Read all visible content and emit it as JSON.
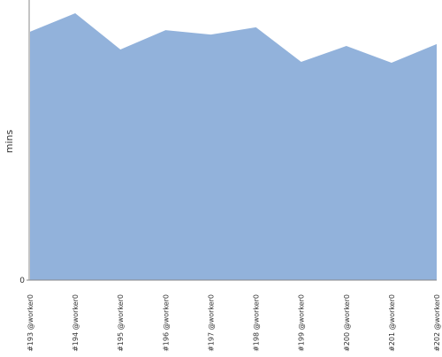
{
  "chart_data": {
    "type": "area",
    "y_label": "mins",
    "categories": [
      "#193 @worker0",
      "#194 @worker0",
      "#195 @worker0",
      "#196 @worker0",
      "#197 @worker0",
      "#198 @worker0",
      "#199 @worker0",
      "#200 @worker0",
      "#201 @worker0",
      "#202 @worker0"
    ],
    "values": [
      10.64,
      11.43,
      9.88,
      10.71,
      10.52,
      10.83,
      9.35,
      10.03,
      9.31,
      10.11
    ],
    "color": "#92b2db",
    "ylim": [
      0,
      12
    ],
    "yticks": [
      0
    ]
  }
}
